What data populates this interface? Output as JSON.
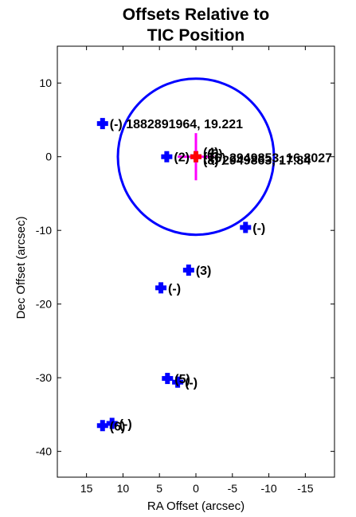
{
  "chart_data": {
    "type": "scatter",
    "title": [
      "Offsets Relative to",
      "TIC Position"
    ],
    "xlabel": "RA Offset (arcsec)",
    "ylabel": "Dec Offset (arcsec)",
    "xlim": [
      19,
      -19
    ],
    "ylim": [
      -43.5,
      15
    ],
    "x_reversed": true,
    "xticks": [
      15,
      10,
      5,
      0,
      -5,
      -10,
      -15
    ],
    "yticks": [
      10,
      0,
      -10,
      -20,
      -30,
      -40
    ],
    "grid": false,
    "marker_color": "#0000ff",
    "target_color": "#ff0000",
    "crosshair_color": "#ff00ff",
    "circle_color": "#0000ff",
    "circle": {
      "center": [
        0,
        0
      ],
      "radius": 10.7
    },
    "target": {
      "x": 0,
      "y": 0
    },
    "crosshair": {
      "x_halfwidth": 2.5,
      "y_halfwidth": 3.2
    },
    "points": [
      {
        "x": 12.8,
        "y": 4.5,
        "label": "(-) 1882891964, 19.221"
      },
      {
        "x": 4.0,
        "y": 0.0,
        "label": "(2)"
      },
      {
        "x": 0.0,
        "y": 0.0,
        "label": "(1)"
      },
      {
        "x": -6.8,
        "y": -9.6,
        "label": "(-)"
      },
      {
        "x": 1.0,
        "y": -15.4,
        "label": "(3)"
      },
      {
        "x": 4.8,
        "y": -17.8,
        "label": "(-)"
      },
      {
        "x": 3.9,
        "y": -30.1,
        "label": "(5)"
      },
      {
        "x": 2.5,
        "y": -30.6,
        "label": "(-)"
      },
      {
        "x": 12.8,
        "y": -36.5,
        "label": ""
      },
      {
        "x": 11.5,
        "y": -36.2,
        "label": "(-)"
      }
    ],
    "overlap_labels": [
      {
        "text": "(6)",
        "anchor_x": 12.8,
        "anchor_y": -36.5
      },
      {
        "text": "(4)",
        "anchor_x": 0.0,
        "anchor_y": 0.0
      },
      {
        "text": "(5)",
        "anchor_x": 0.0,
        "anchor_y": 0.0
      },
      {
        "text": "(8) 2949863, 17.84",
        "anchor_x": 0.0,
        "anchor_y": 0.0
      },
      {
        "text": "(6) 2949853, 16.8027",
        "anchor_x": 0.0,
        "anchor_y": 0.0
      }
    ]
  }
}
